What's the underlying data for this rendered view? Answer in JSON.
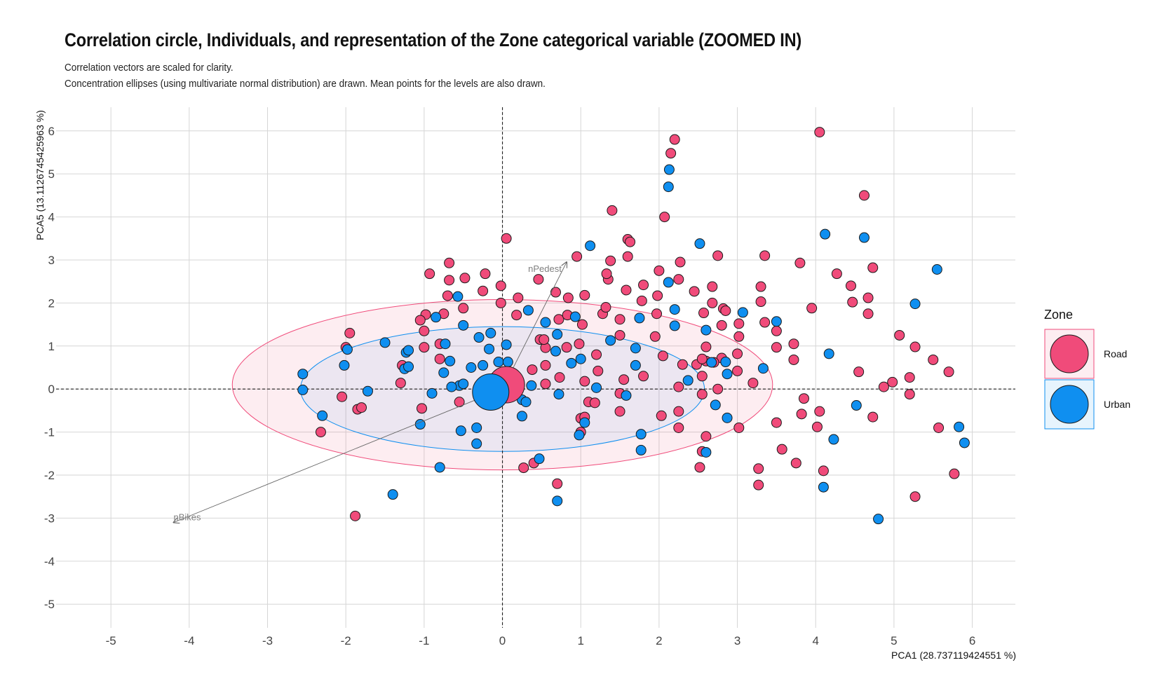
{
  "title": "Correlation circle, Individuals, and representation of the Zone categorical variable (ZOOMED IN)",
  "subtitle_line1": "Correlation vectors are scaled for clarity.",
  "subtitle_line2": "Concentration ellipses (using multivariate normal distribution) are drawn. Mean points for the levels are also drawn.",
  "colors": {
    "Road": "#f04b7a",
    "Urban": "#0f8ff0"
  },
  "chart_data": {
    "type": "scatter",
    "xlabel": "PCA1 (28.737119424551 %)",
    "ylabel": "PCA5 (13.1126745425963 %)",
    "xlim": [
      -5.7,
      6.55
    ],
    "ylim": [
      -5.55,
      6.55
    ],
    "xticks": [
      -5,
      -4,
      -3,
      -2,
      -1,
      0,
      1,
      2,
      3,
      4,
      5,
      6
    ],
    "yticks": [
      -5,
      -4,
      -3,
      -2,
      -1,
      0,
      1,
      2,
      3,
      4,
      5,
      6
    ],
    "grid": true,
    "legend": {
      "title": "Zone",
      "position": "right",
      "entries": [
        "Road",
        "Urban"
      ]
    },
    "variables": [
      {
        "name": "nPedest",
        "x": 0.82,
        "y": 2.95
      },
      {
        "name": "nBikes",
        "x": -4.2,
        "y": -3.1
      }
    ],
    "ellipses": [
      {
        "group": "Road",
        "cx": 0.0,
        "cy": 0.1,
        "rx": 3.45,
        "ry": 1.98
      },
      {
        "group": "Urban",
        "cx": 0.0,
        "cy": 0.0,
        "rx": 2.58,
        "ry": 1.45
      }
    ],
    "means": [
      {
        "group": "Road",
        "x": 0.05,
        "y": 0.1
      },
      {
        "group": "Urban",
        "x": -0.15,
        "y": -0.07
      }
    ],
    "series": [
      {
        "name": "Road",
        "points": [
          [
            2.2,
            5.8
          ],
          [
            2.15,
            5.48
          ],
          [
            4.05,
            5.97
          ],
          [
            4.62,
            4.5
          ],
          [
            2.07,
            4.0
          ],
          [
            1.4,
            4.15
          ],
          [
            0.05,
            3.5
          ],
          [
            1.6,
            3.48
          ],
          [
            1.63,
            3.42
          ],
          [
            -0.68,
            2.93
          ],
          [
            0.95,
            3.08
          ],
          [
            1.38,
            2.98
          ],
          [
            1.6,
            3.08
          ],
          [
            2.27,
            2.95
          ],
          [
            2.75,
            3.1
          ],
          [
            3.35,
            3.1
          ],
          [
            3.8,
            2.93
          ],
          [
            4.73,
            2.82
          ],
          [
            4.27,
            2.68
          ],
          [
            -0.93,
            2.68
          ],
          [
            -0.48,
            2.58
          ],
          [
            -0.68,
            2.53
          ],
          [
            -0.22,
            2.68
          ],
          [
            -0.25,
            2.28
          ],
          [
            -0.02,
            2.4
          ],
          [
            0.46,
            2.55
          ],
          [
            0.68,
            2.25
          ],
          [
            0.84,
            2.12
          ],
          [
            1.05,
            2.18
          ],
          [
            1.35,
            2.55
          ],
          [
            1.33,
            2.68
          ],
          [
            1.58,
            2.3
          ],
          [
            1.8,
            2.42
          ],
          [
            2.0,
            2.75
          ],
          [
            2.25,
            2.55
          ],
          [
            2.45,
            2.27
          ],
          [
            2.68,
            2.38
          ],
          [
            3.3,
            2.38
          ],
          [
            4.45,
            2.4
          ],
          [
            -0.7,
            2.17
          ],
          [
            -0.75,
            1.75
          ],
          [
            -0.98,
            1.73
          ],
          [
            -1.05,
            1.6
          ],
          [
            -0.5,
            1.88
          ],
          [
            0.2,
            2.12
          ],
          [
            -0.02,
            2.0
          ],
          [
            0.18,
            1.72
          ],
          [
            0.72,
            1.62
          ],
          [
            0.83,
            1.72
          ],
          [
            1.02,
            1.5
          ],
          [
            1.28,
            1.75
          ],
          [
            1.32,
            1.9
          ],
          [
            1.5,
            1.62
          ],
          [
            1.78,
            2.05
          ],
          [
            1.98,
            2.17
          ],
          [
            1.97,
            1.75
          ],
          [
            2.68,
            2.0
          ],
          [
            2.57,
            1.77
          ],
          [
            2.82,
            1.87
          ],
          [
            2.85,
            1.82
          ],
          [
            3.3,
            2.03
          ],
          [
            3.35,
            1.55
          ],
          [
            3.95,
            1.88
          ],
          [
            4.67,
            2.12
          ],
          [
            4.47,
            2.02
          ],
          [
            4.67,
            1.75
          ],
          [
            3.5,
            1.35
          ],
          [
            3.02,
            1.52
          ],
          [
            2.8,
            1.48
          ],
          [
            -1.95,
            1.3
          ],
          [
            -2.0,
            0.97
          ],
          [
            -1.0,
            1.35
          ],
          [
            -0.8,
            1.05
          ],
          [
            -1.0,
            0.97
          ],
          [
            0.48,
            1.15
          ],
          [
            0.98,
            1.05
          ],
          [
            1.5,
            1.25
          ],
          [
            1.95,
            1.22
          ],
          [
            2.6,
            0.98
          ],
          [
            3.02,
            1.22
          ],
          [
            3.5,
            0.97
          ],
          [
            3.72,
            1.05
          ],
          [
            3.72,
            0.68
          ],
          [
            5.07,
            1.25
          ],
          [
            5.27,
            0.98
          ],
          [
            5.5,
            0.68
          ],
          [
            5.7,
            0.4
          ],
          [
            4.98,
            0.16
          ],
          [
            4.87,
            0.05
          ],
          [
            5.2,
            0.27
          ],
          [
            5.2,
            -0.12
          ],
          [
            4.55,
            0.4
          ],
          [
            2.05,
            0.77
          ],
          [
            2.6,
            0.65
          ],
          [
            2.8,
            0.72
          ],
          [
            3.0,
            0.82
          ],
          [
            3.0,
            0.42
          ],
          [
            3.2,
            0.14
          ],
          [
            2.55,
            0.3
          ],
          [
            2.3,
            0.57
          ],
          [
            2.48,
            0.57
          ],
          [
            2.55,
            0.7
          ],
          [
            2.7,
            0.62
          ],
          [
            2.75,
            0.0
          ],
          [
            2.55,
            -0.12
          ],
          [
            1.2,
            0.8
          ],
          [
            0.82,
            0.97
          ],
          [
            0.38,
            0.45
          ],
          [
            0.55,
            0.55
          ],
          [
            0.55,
            0.96
          ],
          [
            0.53,
            1.15
          ],
          [
            0.73,
            0.27
          ],
          [
            0.55,
            0.12
          ],
          [
            1.05,
            0.18
          ],
          [
            1.22,
            0.42
          ],
          [
            1.55,
            0.22
          ],
          [
            1.8,
            0.3
          ],
          [
            1.5,
            -0.1
          ],
          [
            -1.28,
            0.55
          ],
          [
            -1.3,
            0.14
          ],
          [
            -0.8,
            0.7
          ],
          [
            -0.55,
            -0.3
          ],
          [
            -2.05,
            -0.18
          ],
          [
            -1.85,
            -0.47
          ],
          [
            -1.8,
            -0.43
          ],
          [
            -1.03,
            -0.45
          ],
          [
            -2.32,
            -1.0
          ],
          [
            -1.88,
            -2.95
          ],
          [
            2.25,
            0.05
          ],
          [
            2.25,
            -0.9
          ],
          [
            2.25,
            -0.52
          ],
          [
            2.03,
            -0.62
          ],
          [
            1.5,
            -0.52
          ],
          [
            1.1,
            -0.3
          ],
          [
            1.18,
            -0.32
          ],
          [
            1.0,
            -0.68
          ],
          [
            1.05,
            -0.65
          ],
          [
            1.0,
            -1.0
          ],
          [
            2.6,
            -1.1
          ],
          [
            2.55,
            -1.45
          ],
          [
            2.52,
            -1.82
          ],
          [
            3.02,
            -0.9
          ],
          [
            3.27,
            -1.85
          ],
          [
            3.27,
            -2.23
          ],
          [
            3.5,
            -0.78
          ],
          [
            3.57,
            -1.4
          ],
          [
            3.75,
            -1.72
          ],
          [
            3.82,
            -0.58
          ],
          [
            3.85,
            -0.22
          ],
          [
            4.02,
            -0.88
          ],
          [
            4.05,
            -0.52
          ],
          [
            4.1,
            -1.9
          ],
          [
            4.73,
            -0.65
          ],
          [
            5.57,
            -0.9
          ],
          [
            5.27,
            -2.5
          ],
          [
            5.77,
            -1.97
          ],
          [
            0.27,
            -1.83
          ],
          [
            0.4,
            -1.72
          ],
          [
            0.7,
            -2.2
          ]
        ]
      },
      {
        "name": "Urban",
        "points": [
          [
            2.13,
            5.1
          ],
          [
            2.12,
            4.7
          ],
          [
            4.12,
            3.6
          ],
          [
            4.62,
            3.52
          ],
          [
            5.55,
            2.78
          ],
          [
            5.27,
            1.98
          ],
          [
            1.12,
            3.33
          ],
          [
            2.52,
            3.38
          ],
          [
            2.12,
            2.48
          ],
          [
            -0.57,
            2.15
          ],
          [
            -0.5,
            1.48
          ],
          [
            -0.85,
            1.67
          ],
          [
            0.33,
            1.83
          ],
          [
            0.55,
            1.55
          ],
          [
            0.7,
            1.27
          ],
          [
            0.93,
            1.68
          ],
          [
            1.75,
            1.65
          ],
          [
            2.2,
            1.85
          ],
          [
            2.2,
            1.47
          ],
          [
            2.6,
            1.37
          ],
          [
            3.07,
            1.78
          ],
          [
            3.5,
            1.57
          ],
          [
            4.17,
            0.82
          ],
          [
            -1.5,
            1.08
          ],
          [
            -1.23,
            0.85
          ],
          [
            -1.2,
            0.9
          ],
          [
            -0.73,
            1.05
          ],
          [
            -0.3,
            1.2
          ],
          [
            -0.15,
            1.3
          ],
          [
            0.05,
            1.03
          ],
          [
            -0.17,
            0.93
          ],
          [
            -0.05,
            0.63
          ],
          [
            -0.25,
            0.55
          ],
          [
            -0.67,
            0.65
          ],
          [
            -0.4,
            0.5
          ],
          [
            -1.98,
            0.92
          ],
          [
            -2.02,
            0.55
          ],
          [
            -1.25,
            0.47
          ],
          [
            -1.2,
            0.52
          ],
          [
            -2.55,
            0.35
          ],
          [
            -0.75,
            0.38
          ],
          [
            0.07,
            0.63
          ],
          [
            0.68,
            0.88
          ],
          [
            1.38,
            1.13
          ],
          [
            1.0,
            0.7
          ],
          [
            1.7,
            0.95
          ],
          [
            1.7,
            0.55
          ],
          [
            0.88,
            0.6
          ],
          [
            2.37,
            0.2
          ],
          [
            2.67,
            0.62
          ],
          [
            2.85,
            0.63
          ],
          [
            2.87,
            0.35
          ],
          [
            3.33,
            0.48
          ],
          [
            -2.55,
            -0.02
          ],
          [
            -1.72,
            -0.05
          ],
          [
            -0.55,
            0.08
          ],
          [
            -0.5,
            0.12
          ],
          [
            -0.9,
            -0.1
          ],
          [
            -0.65,
            0.05
          ],
          [
            0.37,
            0.08
          ],
          [
            0.25,
            -0.25
          ],
          [
            0.3,
            -0.3
          ],
          [
            1.2,
            0.03
          ],
          [
            1.58,
            -0.15
          ],
          [
            0.72,
            -0.12
          ],
          [
            -2.3,
            -0.62
          ],
          [
            -1.05,
            -0.82
          ],
          [
            -0.53,
            -0.97
          ],
          [
            -0.33,
            -0.9
          ],
          [
            -0.33,
            -1.27
          ],
          [
            0.25,
            -0.63
          ],
          [
            1.05,
            -0.78
          ],
          [
            0.98,
            -1.07
          ],
          [
            1.77,
            -1.05
          ],
          [
            1.77,
            -1.42
          ],
          [
            0.47,
            -1.62
          ],
          [
            2.72,
            -0.37
          ],
          [
            2.87,
            -0.67
          ],
          [
            -0.8,
            -1.82
          ],
          [
            -1.4,
            -2.45
          ],
          [
            0.7,
            -2.6
          ],
          [
            2.6,
            -1.47
          ],
          [
            4.1,
            -2.28
          ],
          [
            4.23,
            -1.17
          ],
          [
            4.52,
            -0.38
          ],
          [
            4.8,
            -3.02
          ],
          [
            5.83,
            -0.88
          ],
          [
            5.9,
            -1.25
          ]
        ]
      }
    ]
  }
}
